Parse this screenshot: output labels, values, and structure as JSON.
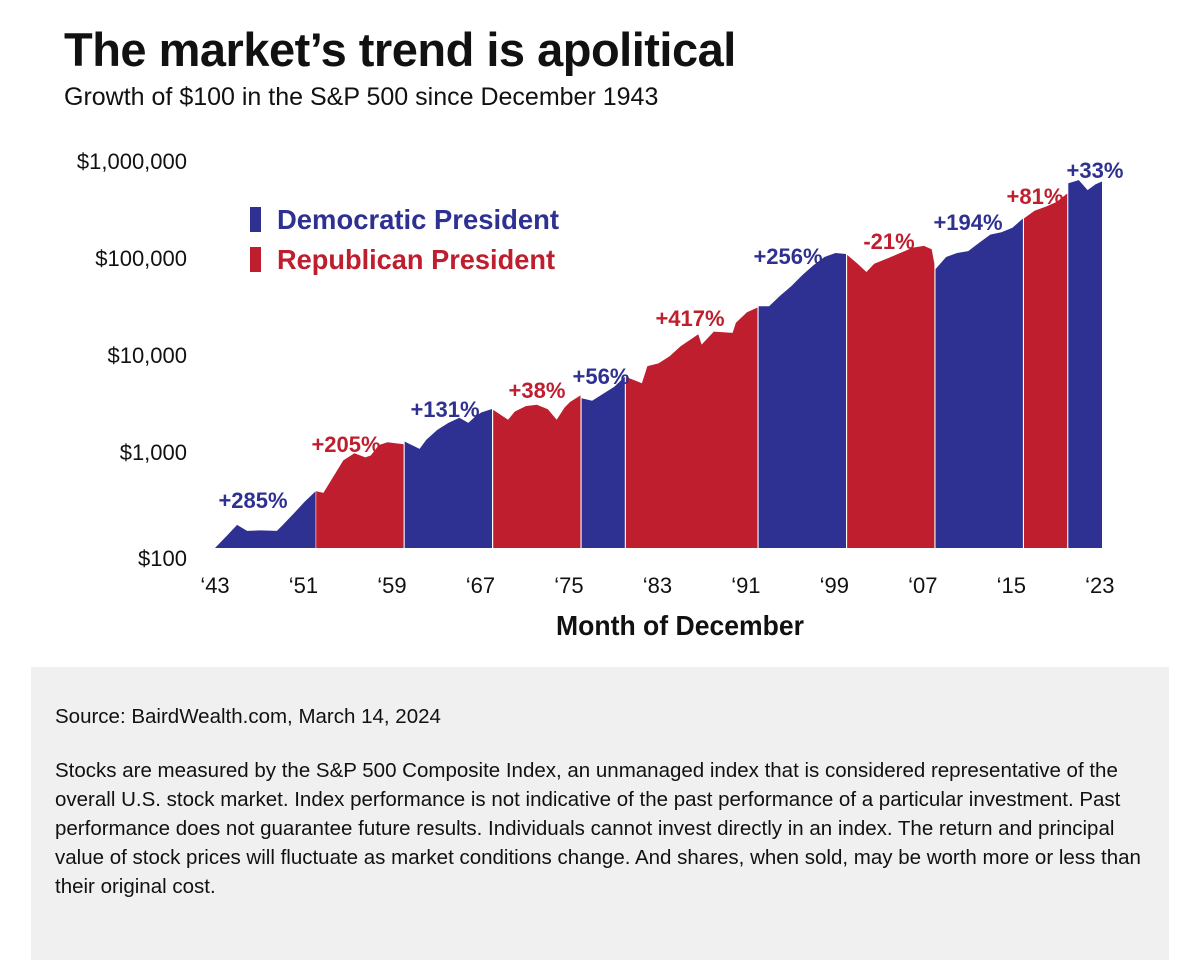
{
  "title": "The market’s trend is apolitical",
  "subtitle": "Growth of $100 in the S&P 500 since December 1943",
  "colors": {
    "democratic": "#2e3192",
    "republican": "#be1e2d"
  },
  "chart_data": {
    "type": "area",
    "title": "The market’s trend is apolitical",
    "subtitle": "Growth of $100 in the S&P 500 since December 1943",
    "xlabel": "Month of December",
    "ylabel": "",
    "yscale": "log",
    "ylim": [
      100,
      1000000
    ],
    "xlim": [
      1943.9,
      2024.1
    ],
    "y_ticks": [
      {
        "value": 100,
        "label": "$100"
      },
      {
        "value": 1000,
        "label": "$1,000"
      },
      {
        "value": 10000,
        "label": "$10,000"
      },
      {
        "value": 100000,
        "label": "$100,000"
      },
      {
        "value": 1000000,
        "label": "$1,000,000"
      }
    ],
    "x_ticks": [
      {
        "value": 1943,
        "label": "‘43"
      },
      {
        "value": 1951,
        "label": "‘51"
      },
      {
        "value": 1959,
        "label": "‘59"
      },
      {
        "value": 1967,
        "label": "‘67"
      },
      {
        "value": 1975,
        "label": "‘75"
      },
      {
        "value": 1983,
        "label": "‘83"
      },
      {
        "value": 1991,
        "label": "‘91"
      },
      {
        "value": 1999,
        "label": "‘99"
      },
      {
        "value": 2007,
        "label": "‘07"
      },
      {
        "value": 2015,
        "label": "‘15"
      },
      {
        "value": 2023,
        "label": "‘23"
      }
    ],
    "legend": {
      "position": "top-left",
      "entries": [
        {
          "party": "democratic",
          "label": "Democratic President"
        },
        {
          "party": "republican",
          "label": "Republican President"
        }
      ]
    },
    "grid": false,
    "segments": [
      {
        "party": "democratic",
        "label": "+285%",
        "points": [
          [
            1943.9,
            100
          ],
          [
            1945,
            135
          ],
          [
            1945.9,
            173
          ],
          [
            1946.8,
            150
          ],
          [
            1948,
            152
          ],
          [
            1949.5,
            150
          ],
          [
            1950,
            172
          ],
          [
            1951,
            225
          ],
          [
            1952,
            300
          ],
          [
            1953,
            385
          ]
        ]
      },
      {
        "party": "republican",
        "label": "+205%",
        "points": [
          [
            1953.05,
            385
          ],
          [
            1953.7,
            370
          ],
          [
            1954.5,
            520
          ],
          [
            1955.5,
            800
          ],
          [
            1956.5,
            950
          ],
          [
            1957.5,
            860
          ],
          [
            1958,
            900
          ],
          [
            1958.7,
            1150
          ],
          [
            1959.5,
            1230
          ],
          [
            1960.95,
            1174
          ]
        ]
      },
      {
        "party": "democratic",
        "label": "+131%",
        "points": [
          [
            1961.05,
            1250
          ],
          [
            1962.4,
            1050
          ],
          [
            1963,
            1300
          ],
          [
            1964,
            1650
          ],
          [
            1965,
            1950
          ],
          [
            1966,
            2200
          ],
          [
            1966.8,
            1950
          ],
          [
            1967.5,
            2300
          ],
          [
            1968,
            2500
          ],
          [
            1968.95,
            2712
          ]
        ]
      },
      {
        "party": "republican",
        "label": "+38%",
        "points": [
          [
            1969.05,
            2650
          ],
          [
            1970.4,
            2100
          ],
          [
            1971,
            2550
          ],
          [
            1972,
            2900
          ],
          [
            1973,
            3000
          ],
          [
            1974,
            2700
          ],
          [
            1974.8,
            2100
          ],
          [
            1975.5,
            2800
          ],
          [
            1976,
            3200
          ],
          [
            1976.95,
            3742
          ]
        ]
      },
      {
        "party": "democratic",
        "label": "+56%",
        "points": [
          [
            1977.05,
            3500
          ],
          [
            1978,
            3300
          ],
          [
            1979,
            3900
          ],
          [
            1980,
            4600
          ],
          [
            1980.95,
            5838
          ]
        ]
      },
      {
        "party": "republican",
        "label": "+417%",
        "points": [
          [
            1981.05,
            5800
          ],
          [
            1982.5,
            5000
          ],
          [
            1983,
            7500
          ],
          [
            1984,
            8000
          ],
          [
            1985,
            9500
          ],
          [
            1986,
            12000
          ],
          [
            1987.6,
            16000
          ],
          [
            1987.9,
            12500
          ],
          [
            1989,
            17000
          ],
          [
            1990.7,
            16500
          ],
          [
            1991,
            21000
          ],
          [
            1992,
            27000
          ],
          [
            1992.95,
            30180
          ]
        ]
      },
      {
        "party": "democratic",
        "label": "+256%",
        "points": [
          [
            1993.05,
            31000
          ],
          [
            1994,
            31000
          ],
          [
            1995,
            40000
          ],
          [
            1996,
            50000
          ],
          [
            1997,
            65000
          ],
          [
            1998,
            82000
          ],
          [
            1999,
            100000
          ],
          [
            2000,
            110000
          ],
          [
            2000.95,
            107440
          ]
        ]
      },
      {
        "party": "republican",
        "label": "-21%",
        "points": [
          [
            2001.05,
            105000
          ],
          [
            2002,
            85000
          ],
          [
            2002.8,
            70000
          ],
          [
            2003.5,
            85000
          ],
          [
            2005,
            100000
          ],
          [
            2007,
            125000
          ],
          [
            2008,
            130000
          ],
          [
            2008.7,
            120000
          ],
          [
            2008.95,
            84880
          ]
        ]
      },
      {
        "party": "democratic",
        "label": "+194%",
        "points": [
          [
            2009.05,
            75000
          ],
          [
            2010,
            100000
          ],
          [
            2011,
            110000
          ],
          [
            2012,
            115000
          ],
          [
            2013,
            140000
          ],
          [
            2014,
            170000
          ],
          [
            2015,
            180000
          ],
          [
            2016,
            200000
          ],
          [
            2016.95,
            249550
          ]
        ]
      },
      {
        "party": "republican",
        "label": "+81%",
        "points": [
          [
            2017.05,
            250000
          ],
          [
            2018,
            300000
          ],
          [
            2019,
            330000
          ],
          [
            2020,
            370000
          ],
          [
            2020.95,
            451690
          ]
        ]
      },
      {
        "party": "democratic",
        "label": "+33%",
        "points": [
          [
            2021.05,
            576000
          ],
          [
            2022,
            620000
          ],
          [
            2022.8,
            490000
          ],
          [
            2023.5,
            560000
          ],
          [
            2024.1,
            600750
          ]
        ]
      }
    ]
  },
  "footer": {
    "source": "Source: BairdWealth.com, March 14, 2024",
    "disclaimer": "Stocks are measured by the S&P 500 Composite Index, an unmanaged index that is considered representative of the overall U.S. stock market. Index performance is not indicative of the past performance of a particular investment. Past performance does not guarantee future results. Individuals cannot invest directly in an index. The return and principal value of stock prices will fluctuate as market conditions change. And shares, when sold, may be worth more or less than their original cost."
  }
}
